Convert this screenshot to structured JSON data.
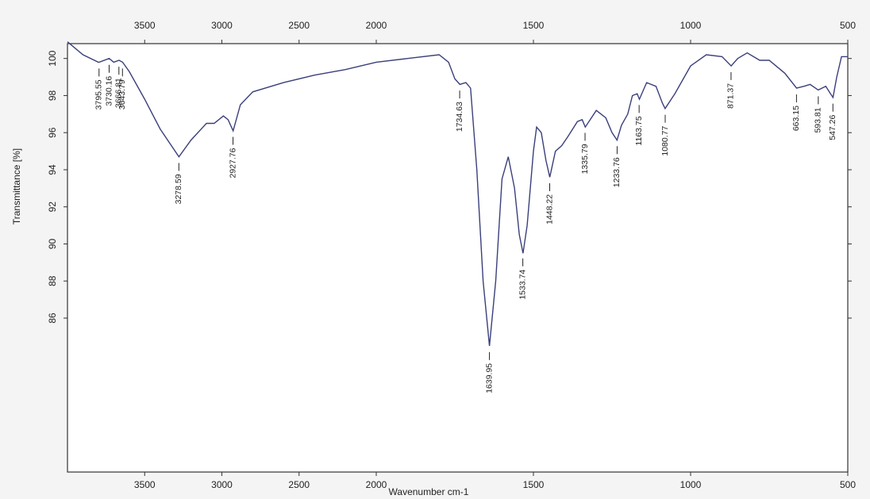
{
  "chart_data": {
    "type": "line",
    "x_label": "Wavenumber cm-1",
    "y_label": "Transmittance [%]",
    "xlim": [
      4000,
      500
    ],
    "x_scale_change": 2000,
    "xticks": [
      3500,
      3000,
      2500,
      2000,
      1500,
      1000,
      500
    ],
    "ylim": [
      77.7,
      100.8
    ],
    "yticks": [
      86,
      88,
      90,
      92,
      94,
      96,
      98,
      100
    ],
    "series": [
      {
        "color": "#3a3f7a",
        "x": [
          4000,
          3900,
          3800,
          3795,
          3730,
          3700,
          3666,
          3643,
          3600,
          3500,
          3400,
          3278,
          3200,
          3100,
          3050,
          2990,
          2960,
          2927,
          2880,
          2800,
          2600,
          2400,
          2200,
          2000,
          1900,
          1800,
          1770,
          1750,
          1734,
          1715,
          1700,
          1680,
          1660,
          1640,
          1620,
          1600,
          1580,
          1560,
          1545,
          1533,
          1520,
          1500,
          1490,
          1475,
          1460,
          1448,
          1430,
          1410,
          1390,
          1360,
          1345,
          1335,
          1300,
          1270,
          1250,
          1234,
          1220,
          1200,
          1185,
          1170,
          1163,
          1140,
          1110,
          1090,
          1081,
          1050,
          1000,
          950,
          900,
          871,
          850,
          820,
          780,
          750,
          700,
          663,
          640,
          620,
          594,
          570,
          555,
          547,
          535,
          520,
          500
        ],
        "values": [
          100.9,
          100.2,
          99.8,
          99.8,
          100.0,
          99.8,
          99.9,
          99.8,
          99.3,
          97.8,
          96.2,
          94.7,
          95.6,
          96.5,
          96.5,
          96.9,
          96.7,
          96.1,
          97.5,
          98.2,
          98.7,
          99.1,
          99.4,
          99.8,
          100.0,
          100.2,
          99.8,
          98.9,
          98.6,
          98.7,
          98.4,
          94,
          88,
          84.5,
          88,
          93.5,
          94.7,
          93,
          90.5,
          89.5,
          91,
          95,
          96.3,
          96,
          94.5,
          93.6,
          95,
          95.3,
          95.8,
          96.6,
          96.7,
          96.3,
          97.2,
          96.8,
          96.0,
          95.6,
          96.4,
          97.0,
          98.0,
          98.1,
          97.8,
          98.7,
          98.5,
          97.6,
          97.3,
          98.1,
          99.6,
          100.2,
          100.1,
          99.6,
          100.0,
          100.3,
          99.9,
          99.9,
          99.2,
          98.4,
          98.5,
          98.6,
          98.3,
          98.5,
          98.1,
          97.9,
          99.0,
          100.1,
          100.1
        ]
      }
    ],
    "peaks": [
      3795.55,
      3730.16,
      3666.81,
      3643.79,
      3278.59,
      2927.76,
      1734.63,
      1639.95,
      1533.74,
      1448.22,
      1335.79,
      1233.76,
      1163.75,
      1080.77,
      871.37,
      663.15,
      593.81,
      547.26
    ]
  }
}
